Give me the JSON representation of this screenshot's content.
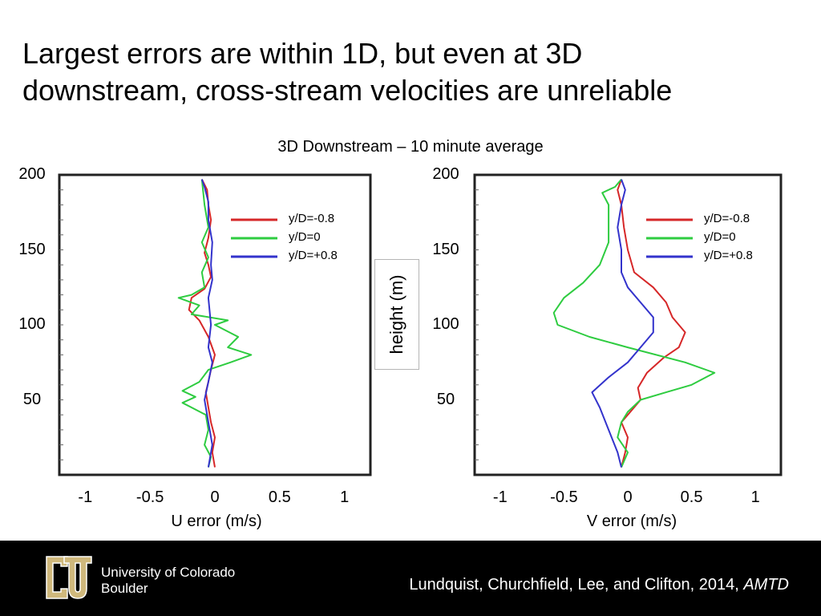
{
  "slide": {
    "title_line1": "Largest errors are within 1D, but even at 3D",
    "title_line2": "downstream, cross-stream velocities are unreliable"
  },
  "figure": {
    "title": "3D Downstream – 10 minute average",
    "shared_ylabel": "height (m)"
  },
  "footer": {
    "university_line1": "University of Colorado",
    "university_line2": "Boulder",
    "citation_text": "Lundquist, Churchfield, Lee, and Clifton, 2014, ",
    "citation_journal": "AMTD",
    "logo_icon": "cu-logo-icon",
    "logo_color": "#cfb87c"
  },
  "colors": {
    "y/D=-0.8": "#d62728",
    "y/D=0": "#2ecc40",
    "y/D=+0.8": "#3333cc"
  },
  "chart_data": [
    {
      "type": "line",
      "title": "",
      "xlabel": "U error (m/s)",
      "ylabel": "",
      "xlim": [
        -1.2,
        1.2
      ],
      "ylim": [
        0,
        200
      ],
      "x_ticks": [
        "-1",
        "-0.5",
        "0",
        "0.5",
        "1"
      ],
      "y_ticks": [
        "200",
        "150",
        "100",
        "50"
      ],
      "legend_position": "top-right",
      "series": [
        {
          "name": "y/D=-0.8",
          "points": [
            [
              0.0,
              5
            ],
            [
              -0.02,
              15
            ],
            [
              0.0,
              25
            ],
            [
              -0.03,
              35
            ],
            [
              -0.05,
              45
            ],
            [
              -0.07,
              55
            ],
            [
              -0.05,
              62
            ],
            [
              -0.03,
              70
            ],
            [
              0.0,
              80
            ],
            [
              -0.05,
              92
            ],
            [
              -0.12,
              103
            ],
            [
              -0.2,
              110
            ],
            [
              -0.18,
              118
            ],
            [
              -0.08,
              124
            ],
            [
              -0.03,
              132
            ],
            [
              -0.05,
              140
            ],
            [
              -0.08,
              148
            ],
            [
              -0.05,
              158
            ],
            [
              -0.03,
              170
            ],
            [
              -0.05,
              180
            ],
            [
              -0.06,
              190
            ],
            [
              -0.1,
              197
            ]
          ]
        },
        {
          "name": "y/D=0",
          "points": [
            [
              -0.05,
              5
            ],
            [
              -0.03,
              12
            ],
            [
              -0.08,
              20
            ],
            [
              -0.05,
              30
            ],
            [
              -0.07,
              40
            ],
            [
              -0.25,
              48
            ],
            [
              -0.15,
              52
            ],
            [
              -0.25,
              56
            ],
            [
              -0.12,
              62
            ],
            [
              -0.05,
              70
            ],
            [
              0.12,
              75
            ],
            [
              0.28,
              80
            ],
            [
              0.1,
              85
            ],
            [
              0.18,
              92
            ],
            [
              0.0,
              100
            ],
            [
              0.1,
              103
            ],
            [
              -0.18,
              107
            ],
            [
              -0.12,
              113
            ],
            [
              -0.28,
              118
            ],
            [
              -0.18,
              120
            ],
            [
              -0.08,
              125
            ],
            [
              -0.1,
              135
            ],
            [
              -0.05,
              145
            ],
            [
              -0.1,
              155
            ],
            [
              -0.05,
              165
            ],
            [
              -0.08,
              180
            ],
            [
              -0.1,
              197
            ]
          ]
        },
        {
          "name": "y/D=+0.8",
          "points": [
            [
              -0.05,
              5
            ],
            [
              -0.02,
              20
            ],
            [
              -0.05,
              35
            ],
            [
              -0.08,
              50
            ],
            [
              -0.05,
              62
            ],
            [
              -0.02,
              75
            ],
            [
              -0.05,
              85
            ],
            [
              -0.03,
              100
            ],
            [
              -0.05,
              118
            ],
            [
              -0.02,
              130
            ],
            [
              -0.03,
              140
            ],
            [
              -0.02,
              155
            ],
            [
              -0.05,
              170
            ],
            [
              -0.05,
              182
            ],
            [
              -0.08,
              192
            ],
            [
              -0.1,
              197
            ]
          ]
        }
      ]
    },
    {
      "type": "line",
      "title": "",
      "xlabel": "V error (m/s)",
      "ylabel": "",
      "xlim": [
        -1.2,
        1.2
      ],
      "ylim": [
        0,
        200
      ],
      "x_ticks": [
        "-1",
        "-0.5",
        "0",
        "0.5",
        "1"
      ],
      "y_ticks": [
        "200",
        "150",
        "100",
        "50"
      ],
      "legend_position": "top-right",
      "series": [
        {
          "name": "y/D=-0.8",
          "points": [
            [
              -0.05,
              5
            ],
            [
              -0.02,
              15
            ],
            [
              0.0,
              25
            ],
            [
              -0.05,
              35
            ],
            [
              0.02,
              42
            ],
            [
              0.1,
              50
            ],
            [
              0.08,
              58
            ],
            [
              0.15,
              68
            ],
            [
              0.28,
              78
            ],
            [
              0.4,
              85
            ],
            [
              0.45,
              95
            ],
            [
              0.35,
              105
            ],
            [
              0.3,
              115
            ],
            [
              0.2,
              125
            ],
            [
              0.05,
              135
            ],
            [
              0.0,
              150
            ],
            [
              -0.03,
              165
            ],
            [
              -0.05,
              180
            ],
            [
              -0.08,
              190
            ],
            [
              -0.05,
              197
            ]
          ]
        },
        {
          "name": "y/D=0",
          "points": [
            [
              -0.05,
              5
            ],
            [
              0.0,
              15
            ],
            [
              -0.08,
              25
            ],
            [
              -0.05,
              35
            ],
            [
              0.0,
              42
            ],
            [
              0.1,
              50
            ],
            [
              0.3,
              55
            ],
            [
              0.5,
              60
            ],
            [
              0.68,
              68
            ],
            [
              0.45,
              75
            ],
            [
              0.0,
              85
            ],
            [
              -0.3,
              92
            ],
            [
              -0.55,
              100
            ],
            [
              -0.58,
              108
            ],
            [
              -0.5,
              118
            ],
            [
              -0.35,
              128
            ],
            [
              -0.22,
              140
            ],
            [
              -0.15,
              155
            ],
            [
              -0.15,
              170
            ],
            [
              -0.15,
              180
            ],
            [
              -0.2,
              188
            ],
            [
              -0.1,
              192
            ],
            [
              -0.05,
              197
            ]
          ]
        },
        {
          "name": "y/D=+0.8",
          "points": [
            [
              -0.05,
              5
            ],
            [
              -0.08,
              15
            ],
            [
              -0.15,
              30
            ],
            [
              -0.22,
              45
            ],
            [
              -0.28,
              55
            ],
            [
              -0.15,
              65
            ],
            [
              0.0,
              75
            ],
            [
              0.1,
              85
            ],
            [
              0.2,
              95
            ],
            [
              0.2,
              105
            ],
            [
              0.1,
              115
            ],
            [
              0.0,
              125
            ],
            [
              -0.05,
              135
            ],
            [
              -0.05,
              150
            ],
            [
              -0.08,
              165
            ],
            [
              -0.05,
              180
            ],
            [
              -0.02,
              190
            ],
            [
              -0.05,
              197
            ]
          ]
        }
      ]
    }
  ]
}
